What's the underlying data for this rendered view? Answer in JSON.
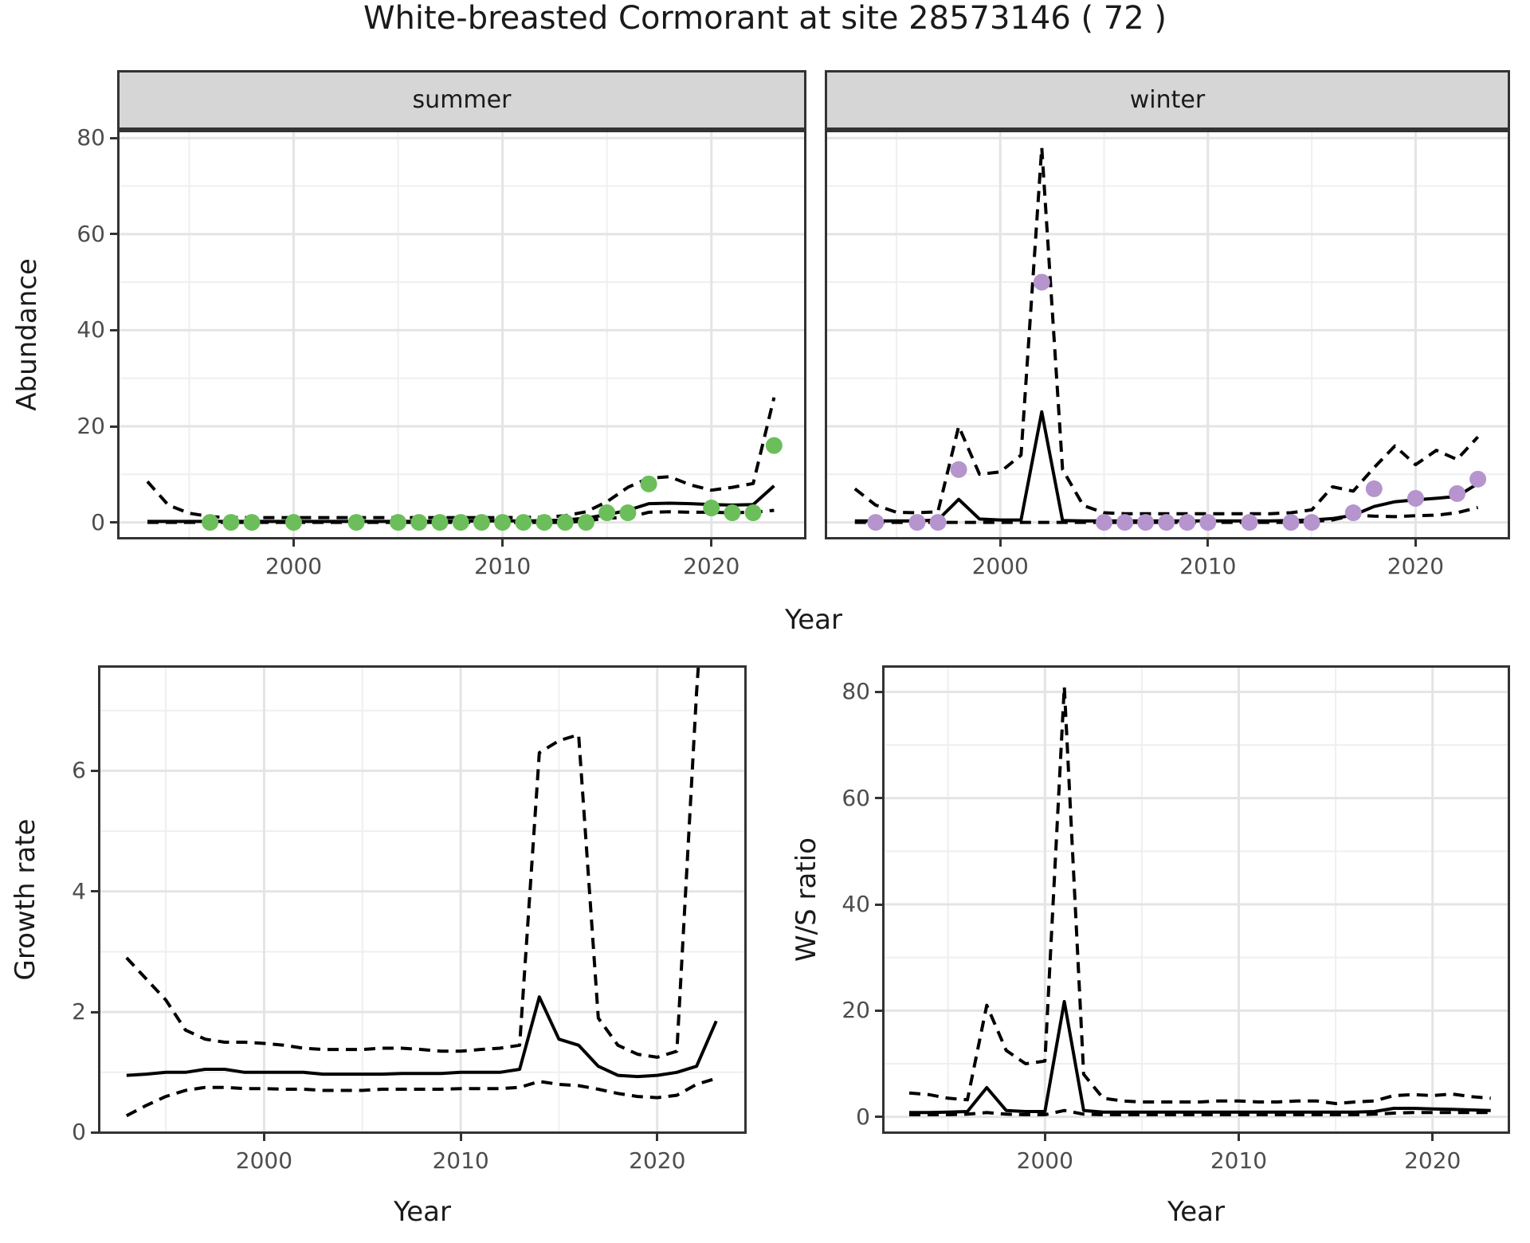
{
  "title": "White-breasted Cormorant at site 28573146 ( 72 )",
  "facets": {
    "summer_label": "summer",
    "winter_label": "winter"
  },
  "axis_titles": {
    "abundance": "Abundance",
    "growth_rate": "Growth rate",
    "ws_ratio": "W/S ratio",
    "year": "Year"
  },
  "colors": {
    "summer_point": "#6cbe5b",
    "winter_point": "#b694ce",
    "line": "#000000",
    "strip_bg": "#d6d6d6",
    "panel_border": "#333333",
    "grid_major": "#e4e4e4",
    "grid_minor": "#efefef",
    "tick_text": "#4d4d4d",
    "title_text": "#1a1a1a"
  },
  "chart_data": [
    {
      "id": "summer",
      "type": "line",
      "title": "summer",
      "xlabel": "Year",
      "ylabel": "Abundance",
      "xlim": [
        1991.55,
        2024.55
      ],
      "ylim": [
        -3.55,
        81.7
      ],
      "x_major": [
        2000,
        2010,
        2020
      ],
      "x_minor": [
        1995,
        2005,
        2015
      ],
      "y_major": [
        0,
        20,
        40,
        60,
        80
      ],
      "y_minor": [
        10,
        30,
        50,
        70
      ],
      "years": [
        1993,
        1994,
        1995,
        1996,
        1997,
        1998,
        1999,
        2000,
        2001,
        2002,
        2003,
        2004,
        2005,
        2006,
        2007,
        2008,
        2009,
        2010,
        2011,
        2012,
        2013,
        2014,
        2015,
        2016,
        2017,
        2018,
        2019,
        2020,
        2021,
        2022,
        2023
      ],
      "series": [
        {
          "name": "fit",
          "style": "solid",
          "y": [
            0.2,
            0.2,
            0.2,
            0.2,
            0.2,
            0.2,
            0.2,
            0.2,
            0.2,
            0.2,
            0.2,
            0.2,
            0.2,
            0.2,
            0.25,
            0.25,
            0.3,
            0.3,
            0.3,
            0.35,
            0.5,
            0.9,
            1.6,
            2.5,
            3.9,
            4.0,
            3.9,
            3.7,
            3.6,
            3.7,
            7.6
          ]
        },
        {
          "name": "upper_ci",
          "style": "dashed",
          "y": [
            8.5,
            3.6,
            1.9,
            1.2,
            1.0,
            1.0,
            1.0,
            1.0,
            1.0,
            1.0,
            1.0,
            1.0,
            1.0,
            1.0,
            1.0,
            1.0,
            1.0,
            1.0,
            1.05,
            1.1,
            1.4,
            2.2,
            4.3,
            7.3,
            9.2,
            9.5,
            7.8,
            6.7,
            7.3,
            8.1,
            26
          ]
        },
        {
          "name": "lower_ci",
          "style": "dashed",
          "y": [
            0,
            0,
            0,
            0,
            0,
            0,
            0,
            0,
            0,
            0,
            0,
            0,
            0,
            0,
            0,
            0,
            0,
            0,
            0,
            0,
            0,
            0.3,
            0.9,
            1.0,
            2.1,
            2.2,
            2.1,
            2.1,
            2.0,
            2.1,
            2.5
          ]
        },
        {
          "name": "observations",
          "style": "points",
          "color": "#6cbe5b",
          "x": [
            1996,
            1997,
            1998,
            2000,
            2003,
            2005,
            2006,
            2007,
            2008,
            2009,
            2010,
            2011,
            2012,
            2013,
            2014,
            2015,
            2016,
            2017,
            2020,
            2021,
            2022,
            2023
          ],
          "y": [
            0,
            0,
            0,
            0,
            0,
            0,
            0,
            0,
            0,
            0,
            0,
            0,
            0,
            0,
            0,
            2,
            2,
            8,
            3,
            2,
            2,
            16
          ]
        }
      ]
    },
    {
      "id": "winter",
      "type": "line",
      "title": "winter",
      "xlabel": "Year",
      "ylabel": "Abundance",
      "xlim": [
        1991.55,
        2024.55
      ],
      "ylim": [
        -3.55,
        81.7
      ],
      "x_major": [
        2000,
        2010,
        2020
      ],
      "x_minor": [
        1995,
        2005,
        2015
      ],
      "y_major": [
        0,
        20,
        40,
        60,
        80
      ],
      "y_minor": [
        10,
        30,
        50,
        70
      ],
      "years": [
        1993,
        1994,
        1995,
        1996,
        1997,
        1998,
        1999,
        2000,
        2001,
        2002,
        2003,
        2004,
        2005,
        2006,
        2007,
        2008,
        2009,
        2010,
        2011,
        2012,
        2013,
        2014,
        2015,
        2016,
        2017,
        2018,
        2019,
        2020,
        2021,
        2022,
        2023
      ],
      "series": [
        {
          "name": "fit",
          "style": "solid",
          "y": [
            0.3,
            0.3,
            0.3,
            0.3,
            0.5,
            4.8,
            0.7,
            0.5,
            0.5,
            23,
            0.4,
            0.3,
            0.3,
            0.3,
            0.3,
            0.3,
            0.3,
            0.3,
            0.3,
            0.3,
            0.3,
            0.4,
            0.5,
            0.8,
            1.5,
            3.3,
            4.3,
            4.7,
            5.0,
            5.4,
            8.1
          ]
        },
        {
          "name": "upper_ci",
          "style": "dashed",
          "y": [
            7,
            3.6,
            2.1,
            2.0,
            2.2,
            20,
            10,
            10.5,
            14,
            78,
            11,
            3.5,
            2.0,
            1.8,
            1.8,
            1.8,
            1.8,
            1.8,
            1.8,
            1.8,
            1.8,
            2.0,
            2.6,
            7.4,
            6.5,
            11.4,
            15.9,
            12,
            15,
            13.1,
            17.8
          ]
        },
        {
          "name": "lower_ci",
          "style": "dashed",
          "y": [
            0,
            0,
            0,
            0,
            0,
            0,
            0,
            0,
            0,
            0,
            0,
            0,
            0,
            0,
            0,
            0,
            0,
            0,
            0,
            0,
            0,
            0,
            0.2,
            0.5,
            1.5,
            1.3,
            1.2,
            1.4,
            1.5,
            2.0,
            3.1
          ]
        },
        {
          "name": "observations",
          "style": "points",
          "color": "#b694ce",
          "x": [
            1994,
            1996,
            1997,
            1998,
            2002,
            2005,
            2006,
            2007,
            2008,
            2009,
            2010,
            2012,
            2014,
            2015,
            2017,
            2018,
            2020,
            2022,
            2023
          ],
          "y": [
            0,
            0,
            0,
            11,
            50,
            0,
            0,
            0,
            0,
            0,
            0,
            0,
            0,
            0,
            2,
            7,
            5,
            6,
            9
          ]
        }
      ]
    },
    {
      "id": "growth",
      "type": "line",
      "title": "",
      "xlabel": "Year",
      "ylabel": "Growth rate",
      "xlim": [
        1991.55,
        2024.55
      ],
      "ylim": [
        -0.02,
        7.75
      ],
      "x_major": [
        2000,
        2010,
        2020
      ],
      "x_minor": [
        1995,
        2005,
        2015
      ],
      "y_major": [
        0,
        2,
        4,
        6
      ],
      "y_minor": [
        1,
        3,
        5,
        7
      ],
      "years": [
        1993,
        1994,
        1995,
        1996,
        1997,
        1998,
        1999,
        2000,
        2001,
        2002,
        2003,
        2004,
        2005,
        2006,
        2007,
        2008,
        2009,
        2010,
        2011,
        2012,
        2013,
        2014,
        2015,
        2016,
        2017,
        2018,
        2019,
        2020,
        2021,
        2022,
        2023
      ],
      "series": [
        {
          "name": "fit",
          "style": "solid",
          "y": [
            0.95,
            0.97,
            1.0,
            1.0,
            1.05,
            1.05,
            1.0,
            1.0,
            1.0,
            1.0,
            0.97,
            0.97,
            0.97,
            0.97,
            0.98,
            0.98,
            0.98,
            1.0,
            1.0,
            1.0,
            1.05,
            2.25,
            1.55,
            1.45,
            1.1,
            0.95,
            0.93,
            0.95,
            1.0,
            1.1,
            1.85
          ]
        },
        {
          "name": "upper_ci",
          "style": "dashed",
          "y": [
            2.9,
            2.55,
            2.2,
            1.7,
            1.55,
            1.5,
            1.5,
            1.48,
            1.45,
            1.4,
            1.38,
            1.38,
            1.38,
            1.4,
            1.4,
            1.38,
            1.35,
            1.35,
            1.38,
            1.4,
            1.45,
            6.3,
            6.5,
            6.6,
            1.9,
            1.45,
            1.3,
            1.25,
            1.35,
            7.3,
            12
          ]
        },
        {
          "name": "lower_ci",
          "style": "dashed",
          "y": [
            0.28,
            0.45,
            0.6,
            0.7,
            0.75,
            0.75,
            0.73,
            0.73,
            0.72,
            0.72,
            0.7,
            0.7,
            0.7,
            0.72,
            0.72,
            0.72,
            0.72,
            0.73,
            0.73,
            0.73,
            0.75,
            0.85,
            0.8,
            0.78,
            0.72,
            0.65,
            0.6,
            0.58,
            0.62,
            0.8,
            0.9
          ]
        }
      ]
    },
    {
      "id": "ws",
      "type": "line",
      "title": "",
      "xlabel": "Year",
      "ylabel": "W/S ratio",
      "xlim": [
        1991.6,
        2024.0
      ],
      "ylim": [
        -3.2,
        85
      ],
      "x_major": [
        2000,
        2010,
        2020
      ],
      "x_minor": [
        1995,
        2005,
        2015
      ],
      "y_major": [
        0,
        20,
        40,
        60,
        80
      ],
      "y_minor": [
        10,
        30,
        50,
        70
      ],
      "years": [
        1993,
        1994,
        1995,
        1996,
        1997,
        1998,
        1999,
        2000,
        2001,
        2002,
        2003,
        2004,
        2005,
        2006,
        2007,
        2008,
        2009,
        2010,
        2011,
        2012,
        2013,
        2014,
        2015,
        2016,
        2017,
        2018,
        2019,
        2020,
        2021,
        2022,
        2023
      ],
      "series": [
        {
          "name": "fit",
          "style": "solid",
          "y": [
            0.8,
            0.8,
            0.9,
            1.0,
            5.5,
            1.2,
            1.0,
            1.0,
            21.7,
            1.2,
            0.9,
            0.9,
            0.9,
            0.9,
            0.9,
            0.9,
            0.9,
            0.9,
            0.9,
            0.9,
            0.9,
            0.9,
            0.9,
            0.9,
            1.0,
            1.6,
            1.6,
            1.5,
            1.4,
            1.3,
            1.2
          ]
        },
        {
          "name": "upper_ci",
          "style": "dashed",
          "y": [
            4.5,
            4.2,
            3.5,
            3.2,
            21,
            12.5,
            10,
            10.5,
            81,
            8,
            3.5,
            3,
            2.8,
            2.8,
            2.8,
            2.8,
            3,
            3,
            2.8,
            2.8,
            3,
            3,
            2.5,
            2.8,
            3,
            4,
            4.2,
            4,
            4.3,
            3.8,
            3.5
          ]
        },
        {
          "name": "lower_ci",
          "style": "dashed",
          "y": [
            0.4,
            0.4,
            0.4,
            0.5,
            0.8,
            0.5,
            0.4,
            0.4,
            1.2,
            0.5,
            0.4,
            0.4,
            0.4,
            0.4,
            0.4,
            0.4,
            0.4,
            0.4,
            0.4,
            0.4,
            0.4,
            0.4,
            0.4,
            0.4,
            0.5,
            0.7,
            0.8,
            0.8,
            0.8,
            0.8,
            0.8
          ]
        }
      ]
    }
  ]
}
